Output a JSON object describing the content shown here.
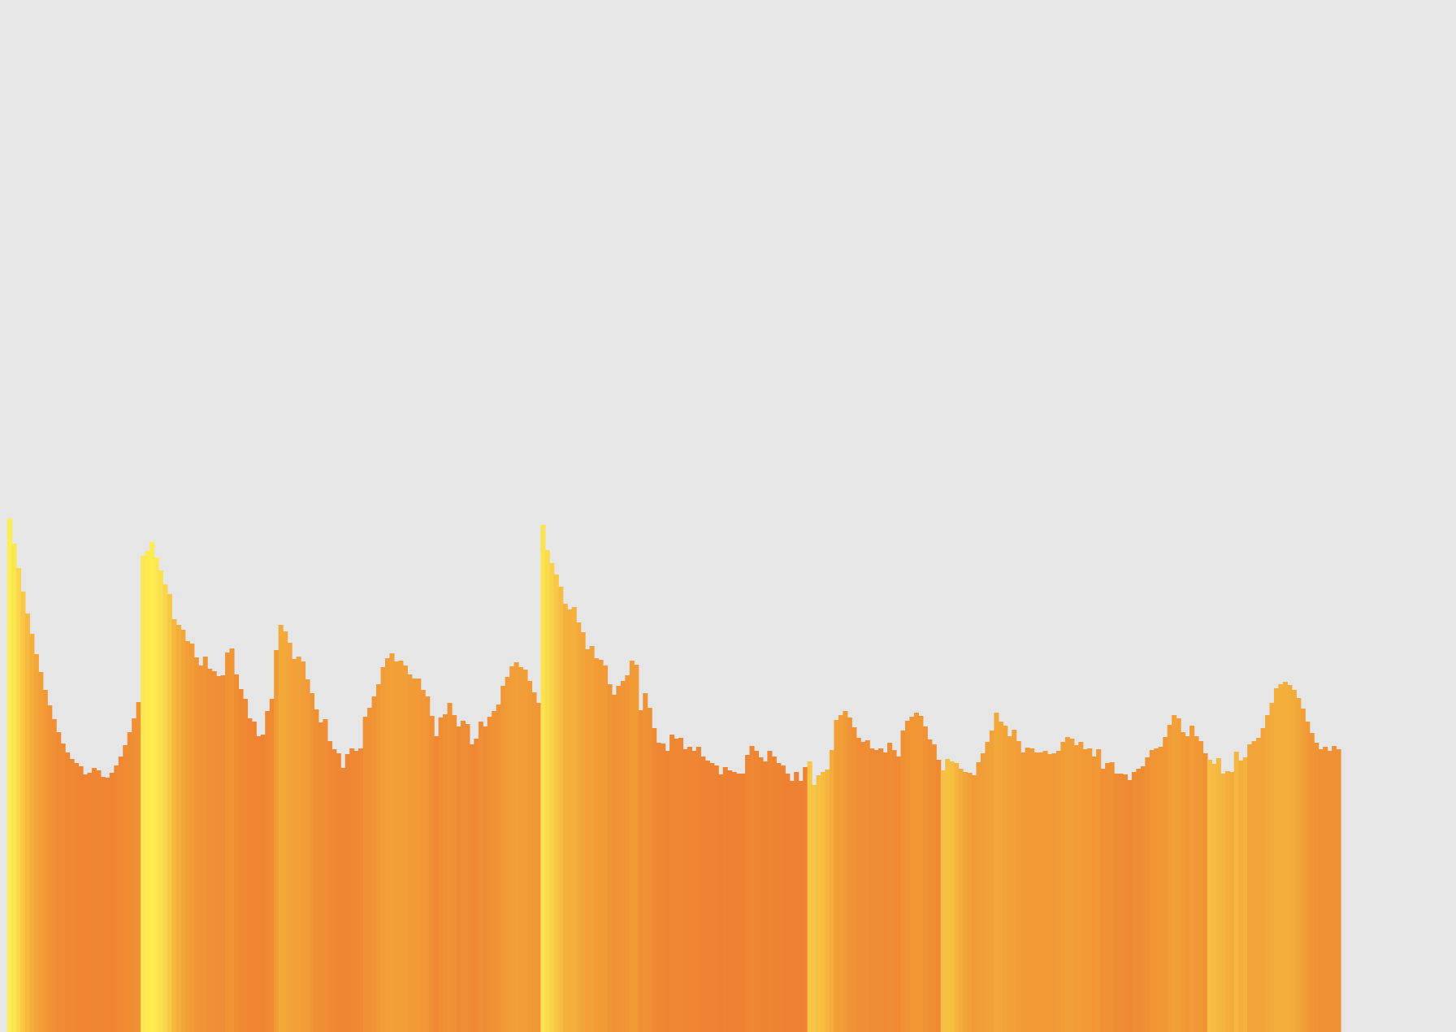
{
  "page": {
    "background": "#e6e6e6"
  },
  "chart_data": {
    "type": "bar",
    "title": "",
    "xlabel": "",
    "ylabel": "",
    "grid": false,
    "legend": "none",
    "axes_visible": false,
    "bar_gap": 0,
    "ylim": [
      0,
      1270
    ],
    "color_scale": {
      "low": "#ee8432",
      "mid": "#fee850",
      "high": "#d9fe4c"
    },
    "values": [
      632,
      601,
      571,
      542,
      515,
      490,
      465,
      443,
      421,
      402,
      385,
      369,
      355,
      344,
      336,
      331,
      327,
      317,
      319,
      325,
      322,
      314,
      313,
      319,
      328,
      339,
      353,
      369,
      386,
      406,
      586,
      592,
      603,
      584,
      568,
      551,
      539,
      508,
      501,
      495,
      481,
      478,
      461,
      451,
      462,
      447,
      444,
      438,
      439,
      467,
      472,
      440,
      422,
      410,
      386,
      382,
      364,
      366,
      395,
      410,
      470,
      501,
      493,
      479,
      459,
      462,
      456,
      434,
      417,
      397,
      381,
      385,
      358,
      348,
      343,
      325,
      342,
      349,
      346,
      349,
      388,
      399,
      413,
      428,
      449,
      460,
      466,
      456,
      457,
      451,
      440,
      435,
      435,
      421,
      413,
      389,
      364,
      387,
      391,
      405,
      390,
      376,
      383,
      379,
      354,
      361,
      382,
      376,
      388,
      395,
      403,
      426,
      437,
      450,
      455,
      449,
      446,
      432,
      418,
      405,
      624,
      593,
      577,
      563,
      548,
      527,
      520,
      523,
      504,
      492,
      471,
      475,
      460,
      458,
      451,
      428,
      415,
      426,
      432,
      439,
      457,
      452,
      396,
      417,
      399,
      374,
      356,
      355,
      346,
      366,
      361,
      362,
      348,
      351,
      346,
      351,
      339,
      334,
      331,
      328,
      317,
      326,
      322,
      320,
      318,
      318,
      341,
      352,
      346,
      338,
      333,
      346,
      339,
      331,
      328,
      318,
      309,
      320,
      309,
      326,
      333,
      304,
      316,
      320,
      323,
      347,
      384,
      390,
      395,
      387,
      375,
      362,
      357,
      359,
      349,
      347,
      349,
      344,
      356,
      347,
      339,
      371,
      383,
      388,
      393,
      389,
      376,
      360,
      354,
      335,
      322,
      336,
      333,
      331,
      324,
      320,
      319,
      316,
      332,
      343,
      357,
      371,
      393,
      382,
      377,
      364,
      372,
      358,
      344,
      350,
      349,
      344,
      344,
      346,
      342,
      343,
      346,
      357,
      363,
      361,
      353,
      357,
      348,
      349,
      339,
      348,
      324,
      331,
      332,
      318,
      318,
      317,
      310,
      320,
      324,
      327,
      338,
      347,
      349,
      351,
      363,
      378,
      390,
      386,
      369,
      364,
      377,
      364,
      358,
      343,
      335,
      330,
      337,
      318,
      321,
      320,
      345,
      334,
      338,
      354,
      358,
      362,
      374,
      390,
      405,
      423,
      428,
      431,
      427,
      421,
      411,
      398,
      382,
      368,
      356,
      348,
      351,
      346,
      352,
      348
    ],
    "colors": [
      "#fbf050",
      "#fbe550",
      "#fbd64c",
      "#f9c745",
      "#f7ba40",
      "#f5b03c",
      "#f4a739",
      "#f39f37",
      "#f29836",
      "#f19335",
      "#f08f34",
      "#ef8c33",
      "#ef8a33",
      "#ef8833",
      "#ef8733",
      "#ef8633",
      "#ef8533",
      "#ef8533",
      "#ef8533",
      "#ef8633",
      "#ef8633",
      "#ef8533",
      "#ef8533",
      "#ef8533",
      "#ef8733",
      "#ef8833",
      "#ef8a33",
      "#ef8c33",
      "#f08f34",
      "#f09234",
      "#fbe750",
      "#fde950",
      "#fdec50",
      "#fce750",
      "#fbe050",
      "#f9d64b",
      "#f7c945",
      "#f5b73f",
      "#f4ae3c",
      "#f3a73a",
      "#f29f38",
      "#f19b37",
      "#f19636",
      "#f09335",
      "#f09535",
      "#f08f34",
      "#f08e34",
      "#ef8d34",
      "#ef8d34",
      "#f09434",
      "#f09634",
      "#ef8d33",
      "#ef8a33",
      "#ef8833",
      "#ef8533",
      "#ef8533",
      "#ef8433",
      "#ef8433",
      "#ef8833",
      "#f08b34",
      "#f09c36",
      "#f4aa3a",
      "#f4a83a",
      "#f3a539",
      "#f29f38",
      "#f2a038",
      "#f29e38",
      "#f19a37",
      "#f09535",
      "#f09134",
      "#ef8d34",
      "#ef8e34",
      "#ef8833",
      "#ef8733",
      "#ef8633",
      "#ef8433",
      "#ef8633",
      "#ef8733",
      "#ef8733",
      "#ef8733",
      "#f09134",
      "#f09335",
      "#f09535",
      "#f19836",
      "#f29c37",
      "#f29f38",
      "#f3a139",
      "#f29f38",
      "#f29f38",
      "#f29e38",
      "#f19b37",
      "#f19a37",
      "#f19a37",
      "#f19736",
      "#f09535",
      "#f08f34",
      "#ef8833",
      "#f08e34",
      "#f09034",
      "#f09334",
      "#f08f34",
      "#ef8c33",
      "#ef8e34",
      "#ef8d34",
      "#ef8733",
      "#ef8833",
      "#ef8e34",
      "#ef8d34",
      "#f09034",
      "#f09134",
      "#f09334",
      "#f19836",
      "#f19b37",
      "#f29e38",
      "#f29f38",
      "#f29e38",
      "#f29e38",
      "#f19a37",
      "#f19736",
      "#f09435",
      "#fbe350",
      "#fadb4c",
      "#f8d04a",
      "#f7c745",
      "#f6bd42",
      "#f5b23e",
      "#f4ae3c",
      "#f4af3d",
      "#f3a93a",
      "#f3a539",
      "#f29f38",
      "#f2a038",
      "#f19c37",
      "#f19b37",
      "#f19a37",
      "#f09535",
      "#f09234",
      "#f09435",
      "#f19636",
      "#f19736",
      "#f19b37",
      "#f19a37",
      "#f08f34",
      "#f09335",
      "#f09034",
      "#ef8a33",
      "#ef8633",
      "#ef8633",
      "#ef8433",
      "#ef8833",
      "#ef8733",
      "#ef8733",
      "#ef8533",
      "#ef8533",
      "#ef8533",
      "#ef8533",
      "#ee8433",
      "#ee8332",
      "#ee8332",
      "#ee8332",
      "#ee8232",
      "#ee8332",
      "#ee8232",
      "#ee8232",
      "#ee8232",
      "#ee8232",
      "#ee8633",
      "#ef8733",
      "#ee8633",
      "#ee8533",
      "#ee8433",
      "#ee8633",
      "#ee8533",
      "#ee8332",
      "#ee8332",
      "#ee8232",
      "#ee8132",
      "#ee8232",
      "#ee8132",
      "#ee8332",
      "#f9c646",
      "#f7c445",
      "#f6c142",
      "#f5bc40",
      "#f4b43e",
      "#f3ab3b",
      "#f29f38",
      "#f29d37",
      "#f19b37",
      "#f09535",
      "#f09134",
      "#f08e34",
      "#f08d34",
      "#f08e34",
      "#ef8b33",
      "#ef8b33",
      "#ef8b33",
      "#ef8a33",
      "#ef8d34",
      "#ef8b33",
      "#ef8a33",
      "#f09134",
      "#f09435",
      "#f19636",
      "#f19736",
      "#f19636",
      "#f09335",
      "#ef8f34",
      "#ef8e34",
      "#ef8a33",
      "#f7c044",
      "#f6c142",
      "#f5bf41",
      "#f4b63f",
      "#f3ac3c",
      "#f2a539",
      "#f19f38",
      "#f19b37",
      "#f19c37",
      "#f19e38",
      "#f19f38",
      "#f2a238",
      "#f3a93a",
      "#f3a63a",
      "#f2a439",
      "#f29f38",
      "#f2a139",
      "#f19d38",
      "#f19a37",
      "#f19b37",
      "#f19b37",
      "#f19a37",
      "#f19a37",
      "#f19a37",
      "#f19937",
      "#f19937",
      "#f19a37",
      "#f19d38",
      "#f19f38",
      "#f19f38",
      "#f19b37",
      "#f19c37",
      "#f19936",
      "#f19936",
      "#f09635",
      "#f19936",
      "#f08f34",
      "#f09134",
      "#f09134",
      "#ef8c33",
      "#ef8c33",
      "#ef8b33",
      "#ef8833",
      "#ef8b33",
      "#ef8c33",
      "#ef8d34",
      "#f09134",
      "#f09434",
      "#f09434",
      "#f19535",
      "#f19836",
      "#f19c37",
      "#f2a038",
      "#f29f38",
      "#f19a37",
      "#f19836",
      "#f19c37",
      "#f19836",
      "#f19736",
      "#f09335",
      "#f7be43",
      "#f6bb42",
      "#f5b83f",
      "#f4b43e",
      "#f4af3d",
      "#f3ab3b",
      "#f5b540",
      "#f4b03d",
      "#f4b23e",
      "#f2a339",
      "#f2a339",
      "#f2a339",
      "#f2a439",
      "#f3a83a",
      "#f3ac3b",
      "#f3ae3c",
      "#f3ae3c",
      "#f3ae3c",
      "#f3ad3c",
      "#f3ab3b",
      "#f2a639",
      "#f29f38",
      "#f19a37",
      "#f19636",
      "#f09335",
      "#f09134",
      "#f09234",
      "#f09134",
      "#f09234",
      "#f09134"
    ]
  }
}
